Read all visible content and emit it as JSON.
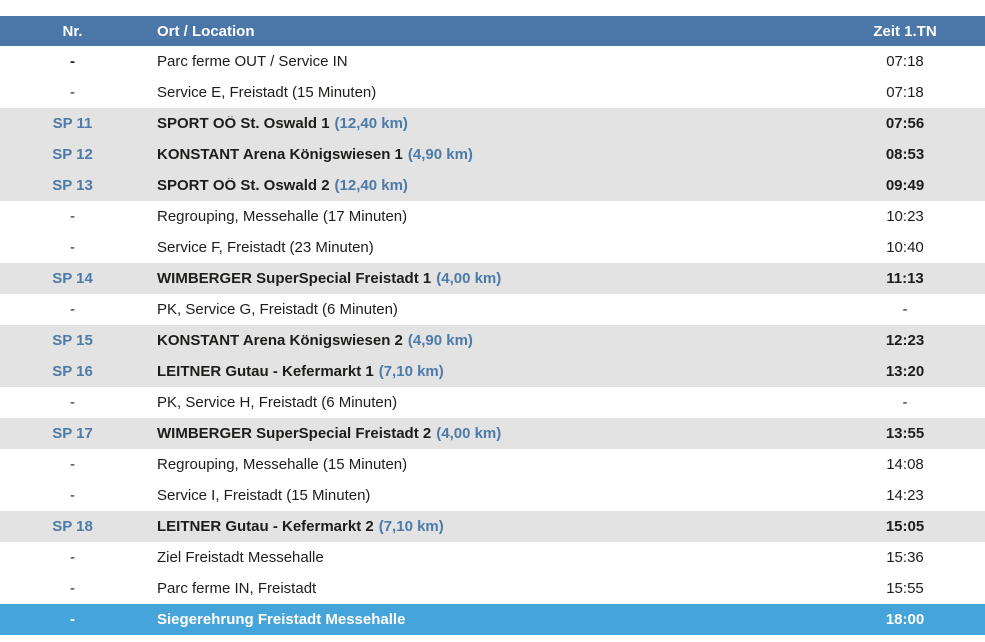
{
  "colors": {
    "header_bg": "#4a77a7",
    "stage_row_bg": "#e3e3e3",
    "stage_blue_text": "#4c7ba9",
    "highlight_row_bg": "#45a4d9",
    "text": "#1d1d1b"
  },
  "table": {
    "headers": {
      "nr": "Nr.",
      "location": "Ort / Location",
      "time": "Zeit 1.TN"
    },
    "rows": [
      {
        "nr": "-",
        "location": "Parc ferme OUT / Service IN",
        "distance": "",
        "time": "07:18",
        "type": "normal",
        "nr_bold": true
      },
      {
        "nr": "-",
        "location": "Service E, Freistadt (15 Minuten)",
        "distance": "",
        "time": "07:18",
        "type": "normal"
      },
      {
        "nr": "SP 11",
        "location": "SPORT OÖ St. Oswald 1",
        "distance": "(12,40 km)",
        "time": "07:56",
        "type": "stage"
      },
      {
        "nr": "SP 12",
        "location": "KONSTANT Arena Königswiesen 1",
        "distance": "(4,90 km)",
        "time": "08:53",
        "type": "stage"
      },
      {
        "nr": "SP 13",
        "location": "SPORT OÖ St. Oswald 2",
        "distance": "(12,40 km)",
        "time": "09:49",
        "type": "stage"
      },
      {
        "nr": "-",
        "location": "Regrouping, Messehalle (17 Minuten)",
        "distance": "",
        "time": "10:23",
        "type": "normal"
      },
      {
        "nr": "-",
        "location": "Service F, Freistadt (23 Minuten)",
        "distance": "",
        "time": "10:40",
        "type": "normal"
      },
      {
        "nr": "SP 14",
        "location": "WIMBERGER SuperSpecial Freistadt 1",
        "distance": "(4,00 km)",
        "time": "11:13",
        "type": "stage"
      },
      {
        "nr": "-",
        "location": "PK, Service G, Freistadt (6 Minuten)",
        "distance": "",
        "time": "-",
        "type": "normal"
      },
      {
        "nr": "SP 15",
        "location": "KONSTANT Arena Königswiesen 2",
        "distance": "(4,90 km)",
        "time": "12:23",
        "type": "stage"
      },
      {
        "nr": "SP 16",
        "location": "LEITNER Gutau - Kefermarkt 1",
        "distance": "(7,10 km)",
        "time": "13:20",
        "type": "stage"
      },
      {
        "nr": "-",
        "location": "PK, Service H, Freistadt (6 Minuten)",
        "distance": "",
        "time": "-",
        "type": "normal"
      },
      {
        "nr": "SP 17",
        "location": "WIMBERGER SuperSpecial Freistadt 2",
        "distance": "(4,00 km)",
        "time": "13:55",
        "type": "stage"
      },
      {
        "nr": "-",
        "location": "Regrouping, Messehalle (15 Minuten)",
        "distance": "",
        "time": "14:08",
        "type": "normal"
      },
      {
        "nr": "-",
        "location": "Service I, Freistadt (15 Minuten)",
        "distance": "",
        "time": "14:23",
        "type": "normal"
      },
      {
        "nr": "SP 18",
        "location": "LEITNER Gutau - Kefermarkt 2",
        "distance": "(7,10 km)",
        "time": "15:05",
        "type": "stage"
      },
      {
        "nr": "-",
        "location": "Ziel Freistadt Messehalle",
        "distance": "",
        "time": "15:36",
        "type": "normal"
      },
      {
        "nr": "-",
        "location": "Parc ferme IN, Freistadt",
        "distance": "",
        "time": "15:55",
        "type": "normal"
      },
      {
        "nr": "-",
        "location": "Siegerehrung Freistadt Messehalle",
        "distance": "",
        "time": "18:00",
        "type": "highlight"
      }
    ]
  }
}
